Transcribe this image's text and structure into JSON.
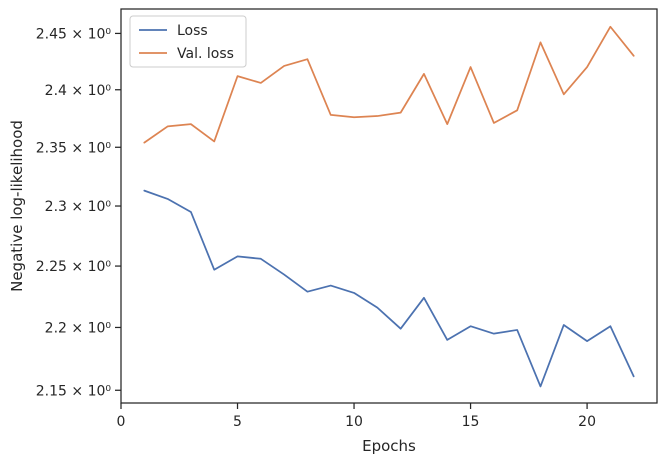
{
  "chart_data": {
    "type": "line",
    "xlabel": "Epochs",
    "ylabel": "Negative log-likelihood",
    "yscale": "log",
    "xlim": [
      0,
      23
    ],
    "ylim": [
      2.14,
      2.472
    ],
    "xticks": [
      0,
      5,
      10,
      15,
      20
    ],
    "yticks": [
      {
        "value": 2.15,
        "label": "2.15 × 10⁰"
      },
      {
        "value": 2.2,
        "label": "2.2 × 10⁰"
      },
      {
        "value": 2.25,
        "label": "2.25 × 10⁰"
      },
      {
        "value": 2.3,
        "label": "2.3 × 10⁰"
      },
      {
        "value": 2.35,
        "label": "2.35 × 10⁰"
      },
      {
        "value": 2.4,
        "label": "2.4 × 10⁰"
      },
      {
        "value": 2.45,
        "label": "2.45 × 10⁰"
      }
    ],
    "legend_position": "top-left",
    "grid": false,
    "x": [
      1,
      2,
      3,
      4,
      5,
      6,
      7,
      8,
      9,
      10,
      11,
      12,
      13,
      14,
      15,
      16,
      17,
      18,
      19,
      20,
      21,
      22
    ],
    "series": [
      {
        "name": "Loss",
        "color": "#4c72b0",
        "values": [
          2.313,
          2.306,
          2.295,
          2.247,
          2.258,
          2.256,
          2.243,
          2.229,
          2.234,
          2.228,
          2.216,
          2.199,
          2.224,
          2.19,
          2.201,
          2.195,
          2.198,
          2.153,
          2.202,
          2.189,
          2.201,
          2.161
        ]
      },
      {
        "name": "Val. loss",
        "color": "#dd8452",
        "values": [
          2.354,
          2.368,
          2.37,
          2.355,
          2.412,
          2.406,
          2.421,
          2.427,
          2.378,
          2.376,
          2.377,
          2.38,
          2.414,
          2.37,
          2.42,
          2.371,
          2.382,
          2.442,
          2.396,
          2.42,
          2.456,
          2.43
        ]
      }
    ]
  }
}
